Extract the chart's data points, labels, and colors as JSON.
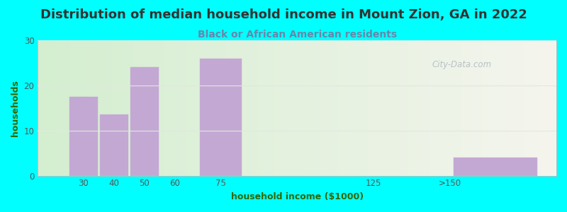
{
  "title": "Distribution of median household income in Mount Zion, GA in 2022",
  "subtitle": "Black or African American residents",
  "xlabel": "household income ($1000)",
  "ylabel": "households",
  "bar_centers": [
    30,
    40,
    50,
    75,
    165
  ],
  "bar_widths": [
    10,
    10,
    10,
    15,
    30
  ],
  "bar_values": [
    17.5,
    13.5,
    24,
    26,
    4
  ],
  "bar_color": "#c4a8d4",
  "bar_edge_color": "#c4a8d4",
  "background_color": "#00ffff",
  "plot_bg_color_left": "#d4eed0",
  "plot_bg_color_right": "#f5f5ee",
  "ylim": [
    0,
    30
  ],
  "yticks": [
    0,
    10,
    20,
    30
  ],
  "xticks": [
    30,
    40,
    50,
    60,
    75,
    125,
    150
  ],
  "xticklabels": [
    "30",
    "40",
    "50",
    "60",
    "75",
    "125",
    ">150"
  ],
  "xlim": [
    15,
    185
  ],
  "title_fontsize": 13,
  "subtitle_fontsize": 10,
  "label_fontsize": 9,
  "tick_fontsize": 8.5,
  "watermark": "City-Data.com",
  "title_color": "#333333",
  "subtitle_color": "#6688aa",
  "axis_label_color": "#336600",
  "tick_color": "#555555",
  "grid_color": "#e0e8e0"
}
